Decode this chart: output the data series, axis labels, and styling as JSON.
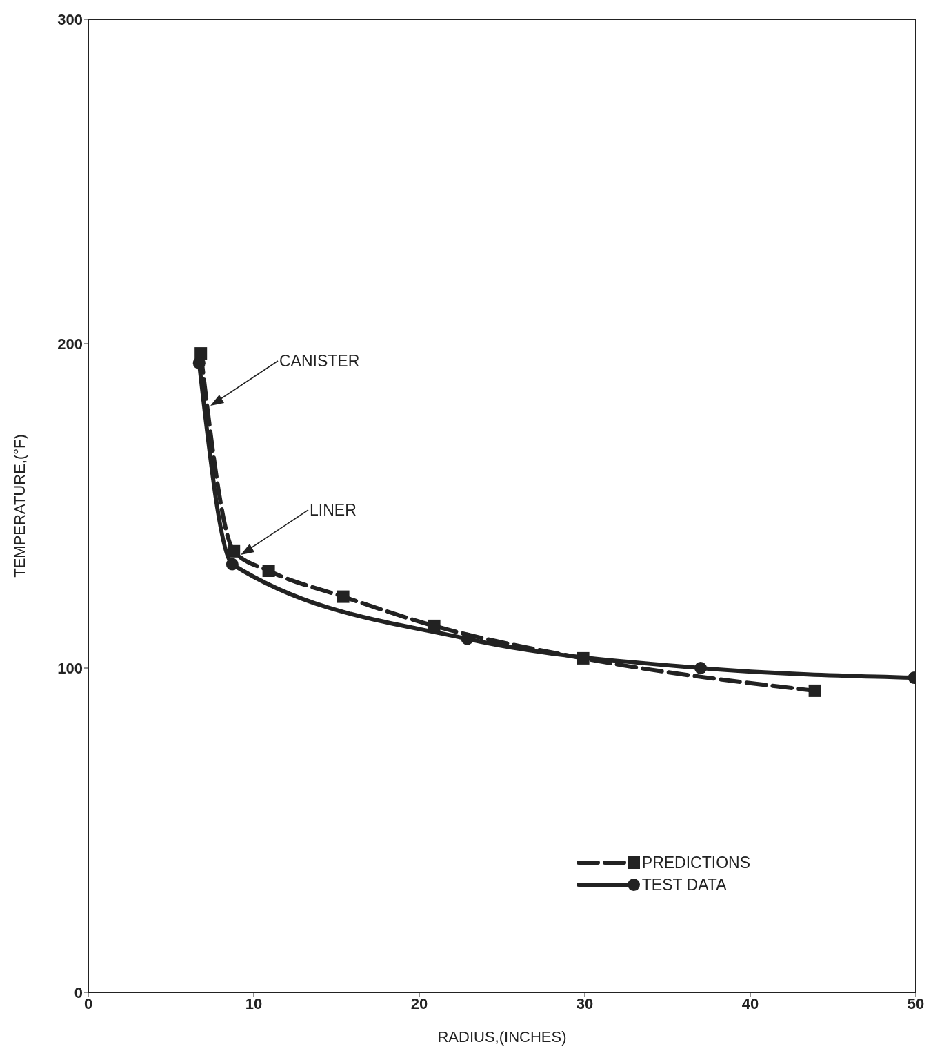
{
  "chart_data": {
    "type": "line",
    "xlabel": "RADIUS,(INCHES)",
    "ylabel": "TEMPERATURE,(°F)",
    "xlim": [
      0,
      50
    ],
    "ylim": [
      0,
      300
    ],
    "xticks": [
      0,
      10,
      20,
      30,
      40,
      50
    ],
    "yticks": [
      0,
      100,
      200,
      300
    ],
    "legend": "bottom right",
    "series": [
      {
        "name": "PREDICTIONS",
        "color": "#222222",
        "line_style": "dashed",
        "marker": "square",
        "x": [
          6.8,
          8.8,
          10.9,
          15.4,
          20.9,
          29.9,
          43.9
        ],
        "values": [
          197,
          136,
          130,
          122,
          113,
          103,
          93
        ]
      },
      {
        "name": "TEST DATA",
        "color": "#222222",
        "line_style": "solid",
        "marker": "circle",
        "x": [
          6.7,
          8.7,
          22.9,
          37.0,
          49.9
        ],
        "values": [
          194,
          132,
          109,
          100,
          97
        ]
      }
    ],
    "annotations": [
      "CANISTER",
      "LINER"
    ]
  }
}
